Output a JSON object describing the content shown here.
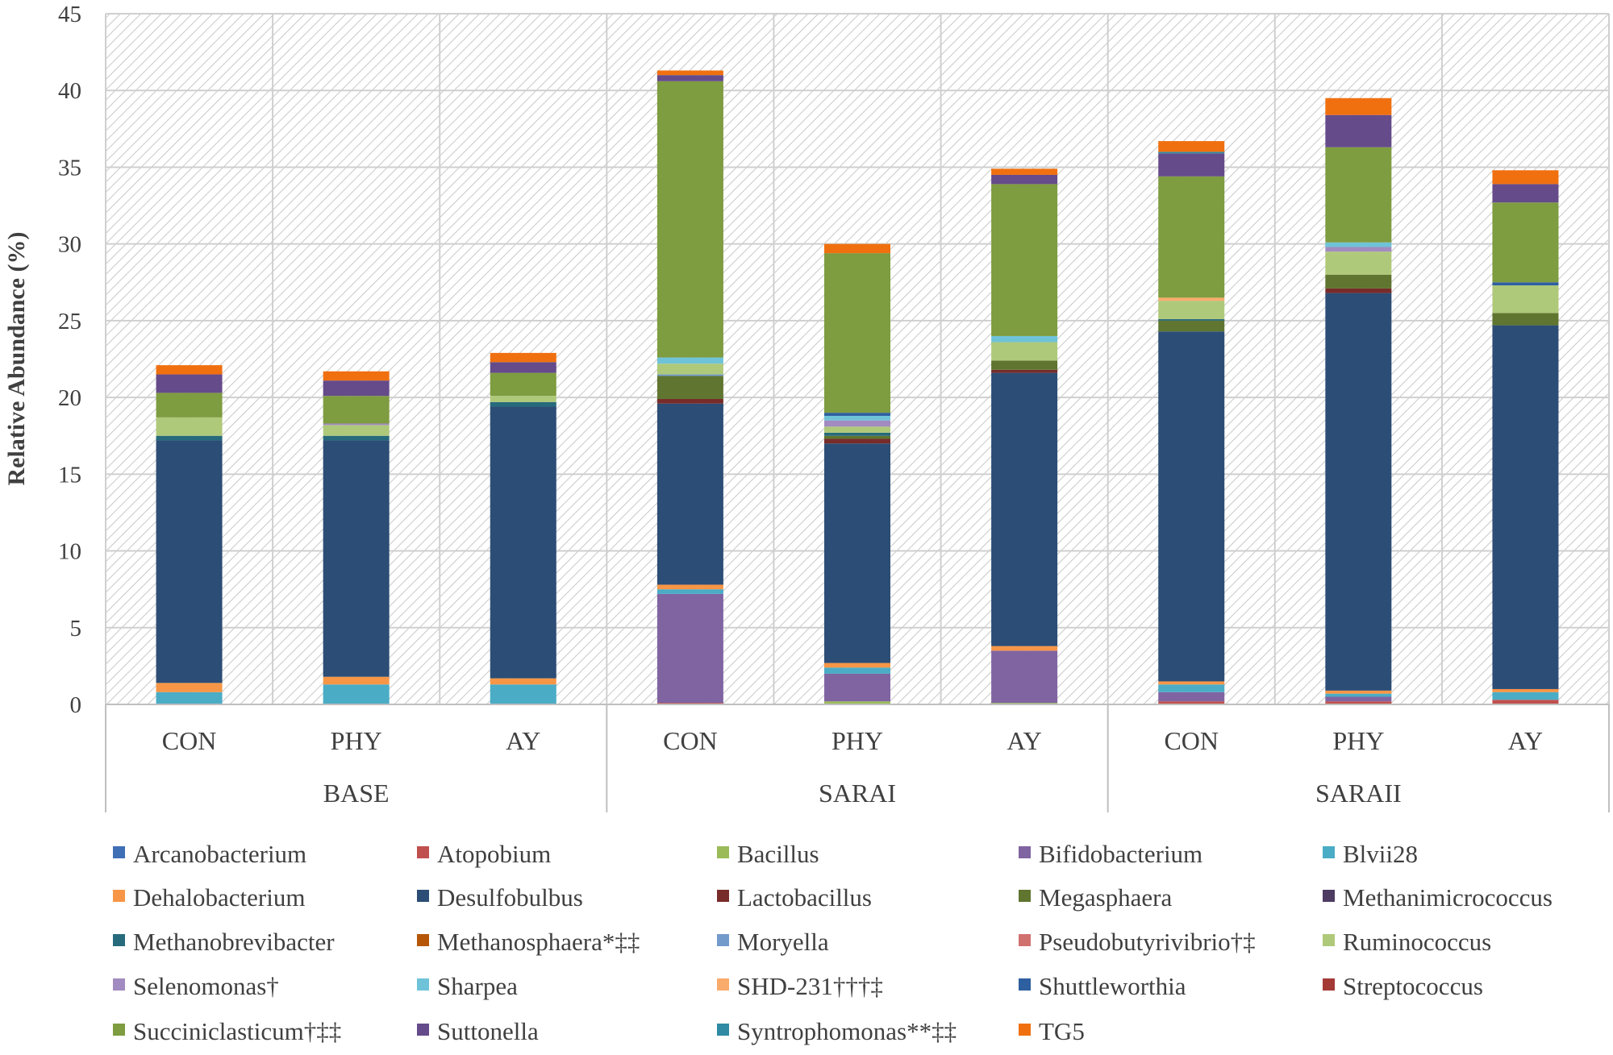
{
  "chart_data": {
    "type": "bar",
    "stacked": true,
    "ylabel": "Relative Abundance  (%)",
    "ylim": [
      0,
      45
    ],
    "yticks": [
      0,
      5,
      10,
      15,
      20,
      25,
      30,
      35,
      40,
      45
    ],
    "grid": true,
    "legend_position": "bottom",
    "categories": [
      "CON",
      "PHY",
      "AY",
      "CON",
      "PHY",
      "AY",
      "CON",
      "PHY",
      "AY"
    ],
    "groups": [
      {
        "label": "BASE",
        "size": 3
      },
      {
        "label": "SARAI",
        "size": 3
      },
      {
        "label": "SARAII",
        "size": 3
      }
    ],
    "series": [
      {
        "name": "Arcanobacterium",
        "color": "#3f6fb5",
        "values": [
          0,
          0,
          0,
          0,
          0,
          0,
          0,
          0,
          0
        ]
      },
      {
        "name": "Atopobium",
        "color": "#c0504d",
        "values": [
          0,
          0,
          0,
          0.1,
          0,
          0,
          0.2,
          0.2,
          0.3
        ]
      },
      {
        "name": "Bacillus",
        "color": "#9bbb59",
        "values": [
          0,
          0,
          0,
          0,
          0.2,
          0.1,
          0,
          0,
          0
        ]
      },
      {
        "name": "Bifidobacterium",
        "color": "#8064a2",
        "values": [
          0,
          0,
          0,
          7.1,
          1.8,
          3.4,
          0.6,
          0.3,
          0
        ]
      },
      {
        "name": "Blvii28",
        "color": "#4bacc6",
        "values": [
          0.8,
          1.3,
          1.3,
          0.3,
          0.4,
          0,
          0.5,
          0.2,
          0.5
        ]
      },
      {
        "name": "Dehalobacterium",
        "color": "#f79646",
        "values": [
          0.6,
          0.5,
          0.4,
          0.3,
          0.3,
          0.3,
          0.2,
          0.2,
          0.2
        ]
      },
      {
        "name": "Desulfobulbus",
        "color": "#2c4d75",
        "values": [
          15.8,
          15.4,
          17.7,
          11.8,
          14.3,
          17.8,
          22.8,
          25.9,
          23.7
        ]
      },
      {
        "name": "Lactobacillus",
        "color": "#772c2a",
        "values": [
          0,
          0,
          0,
          0.3,
          0.3,
          0.2,
          0,
          0.3,
          0
        ]
      },
      {
        "name": "Megasphaera",
        "color": "#5f7530",
        "values": [
          0,
          0,
          0,
          1.5,
          0.2,
          0.6,
          0.7,
          0.9,
          0.8
        ]
      },
      {
        "name": "Methanimicrococcus",
        "color": "#4d3b62",
        "values": [
          0,
          0,
          0,
          0,
          0,
          0,
          0,
          0,
          0
        ]
      },
      {
        "name": "Methanobrevibacter",
        "color": "#276a7c",
        "values": [
          0.3,
          0.3,
          0.3,
          0,
          0.2,
          0,
          0.1,
          0,
          0
        ]
      },
      {
        "name": "Methanosphaera*‡‡",
        "color": "#b65708",
        "values": [
          0,
          0,
          0,
          0,
          0,
          0,
          0,
          0,
          0
        ]
      },
      {
        "name": "Moryella",
        "color": "#729aca",
        "values": [
          0,
          0,
          0,
          0.1,
          0,
          0,
          0,
          0,
          0
        ]
      },
      {
        "name": "Pseudobutyrivibrio†‡",
        "color": "#d1716f",
        "values": [
          0,
          0,
          0,
          0,
          0,
          0,
          0,
          0,
          0
        ]
      },
      {
        "name": "Ruminococcus",
        "color": "#afc97a",
        "values": [
          1.2,
          0.7,
          0.4,
          0.7,
          0.4,
          1.2,
          1.2,
          1.5,
          1.8
        ]
      },
      {
        "name": "Selenomonas†",
        "color": "#a28bc0",
        "values": [
          0,
          0.1,
          0,
          0,
          0.4,
          0,
          0,
          0.3,
          0
        ]
      },
      {
        "name": "Sharpea",
        "color": "#6fc3d8",
        "values": [
          0,
          0,
          0,
          0.4,
          0.3,
          0.4,
          0,
          0.3,
          0
        ]
      },
      {
        "name": "SHD-231†††‡",
        "color": "#f9ab6b",
        "values": [
          0,
          0,
          0,
          0,
          0,
          0,
          0.2,
          0,
          0
        ]
      },
      {
        "name": "Shuttleworthia",
        "color": "#2e5fa0",
        "values": [
          0,
          0,
          0,
          0,
          0.2,
          0,
          0,
          0,
          0.2
        ]
      },
      {
        "name": "Streptococcus",
        "color": "#a33a36",
        "values": [
          0,
          0,
          0,
          0,
          0,
          0,
          0,
          0,
          0
        ]
      },
      {
        "name": "Succiniclasticum†‡‡",
        "color": "#7e9c40",
        "values": [
          1.6,
          1.8,
          1.5,
          18.0,
          10.4,
          9.9,
          7.9,
          6.2,
          5.2
        ]
      },
      {
        "name": "Suttonella",
        "color": "#654b8a",
        "values": [
          1.2,
          1.0,
          0.7,
          0.4,
          0,
          0.6,
          1.5,
          2.1,
          1.2
        ]
      },
      {
        "name": "Syntrophomonas**‡‡",
        "color": "#2f8aa3",
        "values": [
          0,
          0,
          0,
          0,
          0,
          0,
          0.1,
          0,
          0
        ]
      },
      {
        "name": "TG5",
        "color": "#f07010",
        "values": [
          0.6,
          0.6,
          0.6,
          0.3,
          0.6,
          0.4,
          0.7,
          1.1,
          0.9
        ]
      }
    ]
  }
}
